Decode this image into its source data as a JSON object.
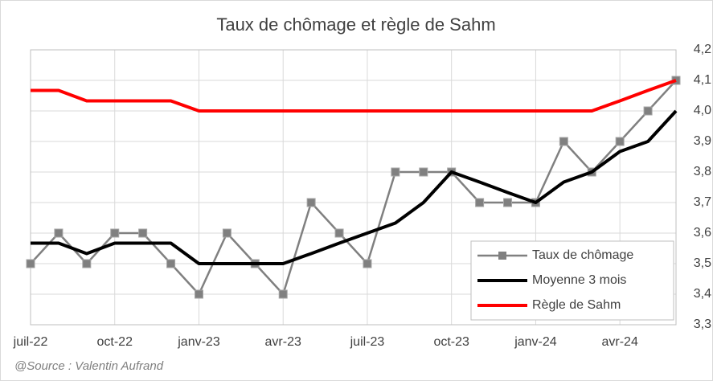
{
  "chart_data": {
    "type": "line",
    "title": "Taux de chômage et règle de Sahm",
    "source": "@Source : Valentin Aufrand",
    "categories": [
      "juil-22",
      null,
      null,
      "oct-22",
      null,
      null,
      "janv-23",
      null,
      null,
      "avr-23",
      null,
      null,
      "juil-23",
      null,
      null,
      "oct-23",
      null,
      null,
      "janv-24",
      null,
      null,
      "avr-24",
      null,
      null
    ],
    "series": [
      {
        "name": "Taux de chômage",
        "color": "#808080",
        "markers": true,
        "values": [
          3.5,
          3.6,
          3.5,
          3.6,
          3.6,
          3.5,
          3.4,
          3.6,
          3.5,
          3.4,
          3.7,
          3.6,
          3.5,
          3.8,
          3.8,
          3.8,
          3.7,
          3.7,
          3.7,
          3.9,
          3.8,
          3.9,
          4.0,
          4.1
        ]
      },
      {
        "name": "Moyenne 3 mois",
        "color": "#000000",
        "markers": false,
        "values": [
          3.567,
          3.567,
          3.533,
          3.567,
          3.567,
          3.567,
          3.5,
          3.5,
          3.5,
          3.5,
          3.533,
          3.567,
          3.6,
          3.633,
          3.7,
          3.8,
          3.767,
          3.733,
          3.7,
          3.767,
          3.8,
          3.867,
          3.9,
          4.0
        ]
      },
      {
        "name": "Règle de Sahm",
        "color": "#ff0000",
        "markers": false,
        "values": [
          4.067,
          4.067,
          4.033,
          4.033,
          4.033,
          4.033,
          4.0,
          4.0,
          4.0,
          4.0,
          4.0,
          4.0,
          4.0,
          4.0,
          4.0,
          4.0,
          4.0,
          4.0,
          4.0,
          4.0,
          4.0,
          4.033,
          4.067,
          4.1
        ]
      }
    ],
    "ylim": [
      3.3,
      4.2
    ],
    "yticks": [
      {
        "value": 3.3,
        "label": "3,3"
      },
      {
        "value": 3.4,
        "label": "3,4"
      },
      {
        "value": 3.5,
        "label": "3,5"
      },
      {
        "value": 3.6,
        "label": "3,6"
      },
      {
        "value": 3.7,
        "label": "3,7"
      },
      {
        "value": 3.8,
        "label": "3,8"
      },
      {
        "value": 3.9,
        "label": "3,9"
      },
      {
        "value": 4.0,
        "label": "4,0"
      },
      {
        "value": 4.1,
        "label": "4,1"
      },
      {
        "value": 4.2,
        "label": "4,2"
      }
    ],
    "y_axis_side": "right",
    "grid": true,
    "legend": "lower right"
  }
}
